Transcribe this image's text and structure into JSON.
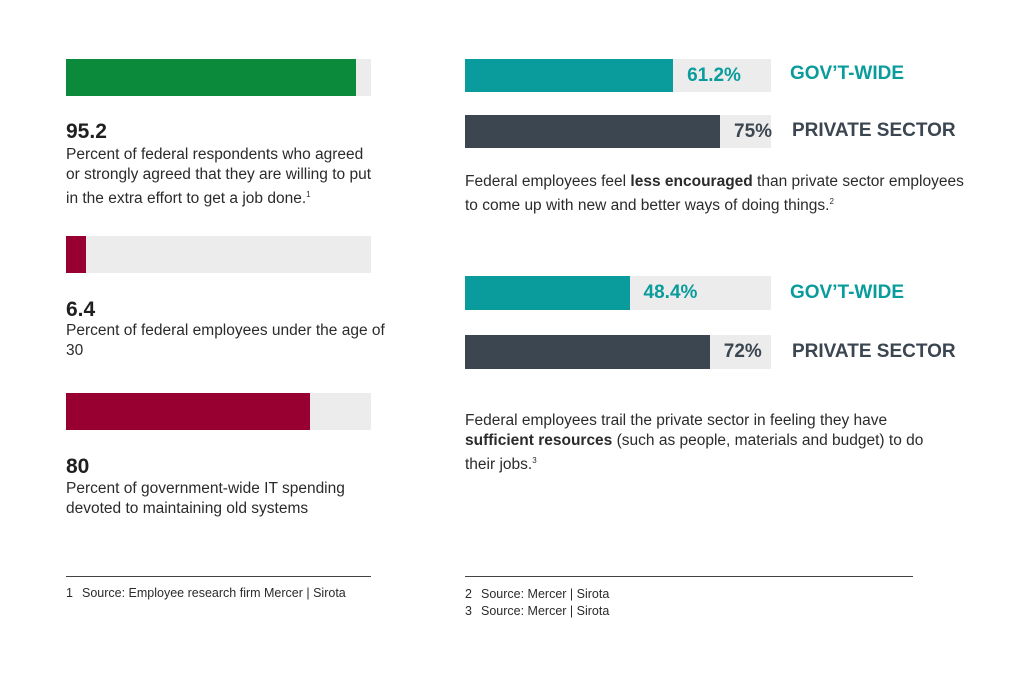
{
  "colors": {
    "green": "#0a8a3a",
    "maroon": "#970031",
    "teal": "#0a9c9c",
    "slate": "#3b4651",
    "track": "#ececec"
  },
  "chart_data": [
    {
      "type": "bar",
      "stats": [
        {
          "value": 95.2,
          "label": "95.2",
          "text": "Percent of federal respondents who agreed or strongly agreed that they are willing to put in the extra effort to get a job done.",
          "note": "1",
          "color": "green"
        },
        {
          "value": 6.4,
          "label": "6.4",
          "text": "Percent of federal employees under the age of 30",
          "note": "",
          "color": "maroon"
        },
        {
          "value": 80,
          "label": "80",
          "text": "Percent of government-wide IT spending devoted to maintaining old systems",
          "note": "",
          "color": "maroon"
        }
      ]
    },
    {
      "type": "bar",
      "categories": [
        "GOV’T-WIDE",
        "PRIVATE SECTOR"
      ],
      "values": [
        61.2,
        75
      ],
      "value_labels": [
        "61.2%",
        "75%"
      ],
      "caption": {
        "pre": "Federal employees feel ",
        "bold": "less encouraged",
        "post": " than private sector employees to come up with new and better ways of doing things.",
        "note": "2"
      }
    },
    {
      "type": "bar",
      "categories": [
        "GOV’T-WIDE",
        "PRIVATE SECTOR"
      ],
      "values": [
        48.4,
        72
      ],
      "value_labels": [
        "48.4%",
        "72%"
      ],
      "caption": {
        "pre": "Federal employees trail the private sector in feeling they have ",
        "bold": "sufficient resources",
        "post": " (such as people, materials and budget) to do their jobs.",
        "note": "3"
      }
    }
  ],
  "footnotes_left": [
    {
      "num": "1",
      "text": "Source: Employee research firm Mercer | Sirota"
    }
  ],
  "footnotes_right": [
    {
      "num": "2",
      "text": "Source: Mercer | Sirota"
    },
    {
      "num": "3",
      "text": "Source: Mercer | Sirota"
    }
  ]
}
